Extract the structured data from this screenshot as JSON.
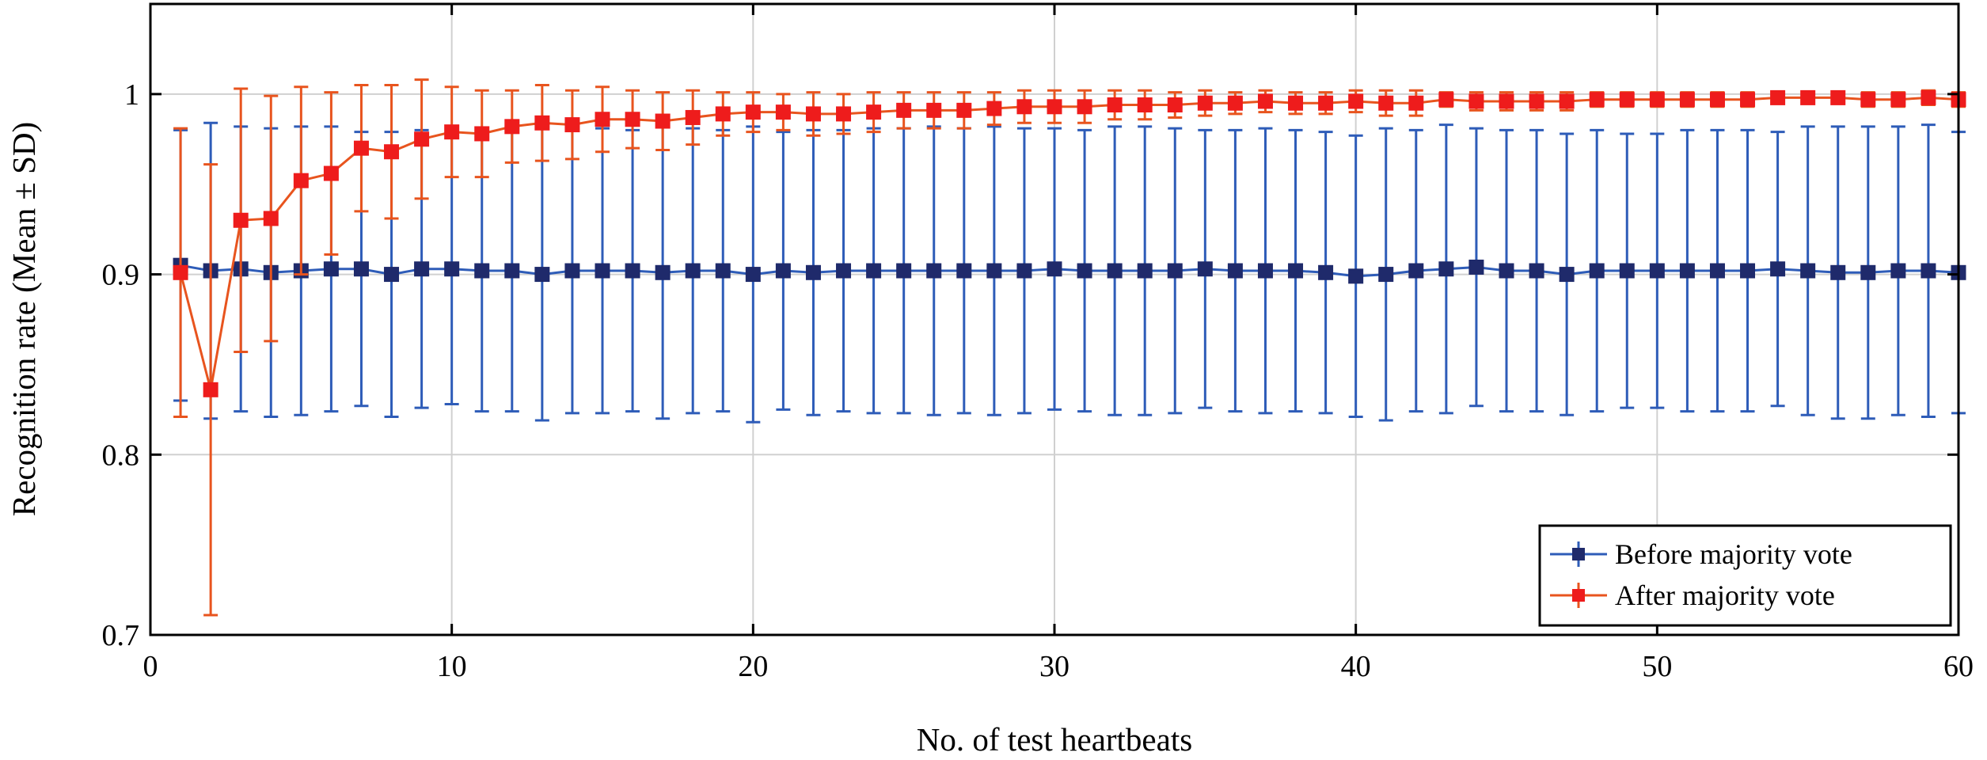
{
  "chart_data": {
    "type": "line",
    "title": "",
    "xlabel": "No. of test heartbeats",
    "ylabel": "Recognition rate (Mean ± SD)",
    "xlim": [
      0,
      60
    ],
    "ylim": [
      0.7,
      1.05
    ],
    "xticks": [
      0,
      10,
      20,
      30,
      40,
      50,
      60
    ],
    "xtick_labels": [
      "0",
      "10",
      "20",
      "30",
      "40",
      "50",
      "60"
    ],
    "yticks": [
      0.7,
      0.8,
      0.9,
      1.0
    ],
    "ytick_labels": [
      "0.7",
      "0.8",
      "0.9",
      "1"
    ],
    "grid": true,
    "legend_position": "bottom-right",
    "x": [
      1,
      2,
      3,
      4,
      5,
      6,
      7,
      8,
      9,
      10,
      11,
      12,
      13,
      14,
      15,
      16,
      17,
      18,
      19,
      20,
      21,
      22,
      23,
      24,
      25,
      26,
      27,
      28,
      29,
      30,
      31,
      32,
      33,
      34,
      35,
      36,
      37,
      38,
      39,
      40,
      41,
      42,
      43,
      44,
      45,
      46,
      47,
      48,
      49,
      50,
      51,
      52,
      53,
      54,
      55,
      56,
      57,
      58,
      59,
      60
    ],
    "series": [
      {
        "name": "Before majority vote",
        "color": "#2e5cb8",
        "marker_color": "#1f2a6b",
        "values": [
          0.905,
          0.902,
          0.903,
          0.901,
          0.902,
          0.903,
          0.903,
          0.9,
          0.903,
          0.903,
          0.902,
          0.902,
          0.9,
          0.902,
          0.902,
          0.902,
          0.901,
          0.902,
          0.902,
          0.9,
          0.902,
          0.901,
          0.902,
          0.902,
          0.902,
          0.902,
          0.902,
          0.902,
          0.902,
          0.903,
          0.902,
          0.902,
          0.902,
          0.902,
          0.903,
          0.902,
          0.902,
          0.902,
          0.901,
          0.899,
          0.9,
          0.902,
          0.903,
          0.904,
          0.902,
          0.902,
          0.9,
          0.902,
          0.902,
          0.902,
          0.902,
          0.902,
          0.902,
          0.903,
          0.902,
          0.901,
          0.901,
          0.902,
          0.902,
          0.901
        ],
        "sd": [
          0.075,
          0.082,
          0.079,
          0.08,
          0.08,
          0.079,
          0.076,
          0.079,
          0.077,
          0.075,
          0.078,
          0.078,
          0.081,
          0.079,
          0.079,
          0.078,
          0.081,
          0.079,
          0.078,
          0.082,
          0.077,
          0.079,
          0.078,
          0.079,
          0.079,
          0.08,
          0.079,
          0.08,
          0.079,
          0.078,
          0.078,
          0.08,
          0.08,
          0.079,
          0.077,
          0.078,
          0.079,
          0.078,
          0.078,
          0.078,
          0.081,
          0.078,
          0.08,
          0.077,
          0.078,
          0.078,
          0.078,
          0.078,
          0.076,
          0.076,
          0.078,
          0.078,
          0.078,
          0.076,
          0.08,
          0.081,
          0.081,
          0.08,
          0.081,
          0.078
        ]
      },
      {
        "name": "After majority vote",
        "color": "#e8541e",
        "marker_color": "#ee1c1c",
        "values": [
          0.901,
          0.836,
          0.93,
          0.931,
          0.952,
          0.956,
          0.97,
          0.968,
          0.975,
          0.979,
          0.978,
          0.982,
          0.984,
          0.983,
          0.986,
          0.986,
          0.985,
          0.987,
          0.989,
          0.99,
          0.99,
          0.989,
          0.989,
          0.99,
          0.991,
          0.991,
          0.991,
          0.992,
          0.993,
          0.993,
          0.993,
          0.994,
          0.994,
          0.994,
          0.995,
          0.995,
          0.996,
          0.995,
          0.995,
          0.996,
          0.995,
          0.995,
          0.997,
          0.996,
          0.996,
          0.996,
          0.996,
          0.997,
          0.997,
          0.997,
          0.997,
          0.997,
          0.997,
          0.998,
          0.998,
          0.998,
          0.997,
          0.997,
          0.998,
          0.997
        ],
        "sd": [
          0.08,
          0.125,
          0.073,
          0.068,
          0.052,
          0.045,
          0.035,
          0.037,
          0.033,
          0.025,
          0.024,
          0.02,
          0.021,
          0.019,
          0.018,
          0.016,
          0.016,
          0.015,
          0.012,
          0.011,
          0.01,
          0.012,
          0.011,
          0.011,
          0.01,
          0.01,
          0.01,
          0.009,
          0.009,
          0.009,
          0.009,
          0.008,
          0.008,
          0.007,
          0.007,
          0.006,
          0.006,
          0.006,
          0.006,
          0.006,
          0.007,
          0.007,
          0.004,
          0.005,
          0.005,
          0.005,
          0.005,
          0.004,
          0.004,
          0.004,
          0.004,
          0.004,
          0.004,
          0.003,
          0.003,
          0.003,
          0.004,
          0.004,
          0.004,
          0.004
        ]
      }
    ]
  }
}
